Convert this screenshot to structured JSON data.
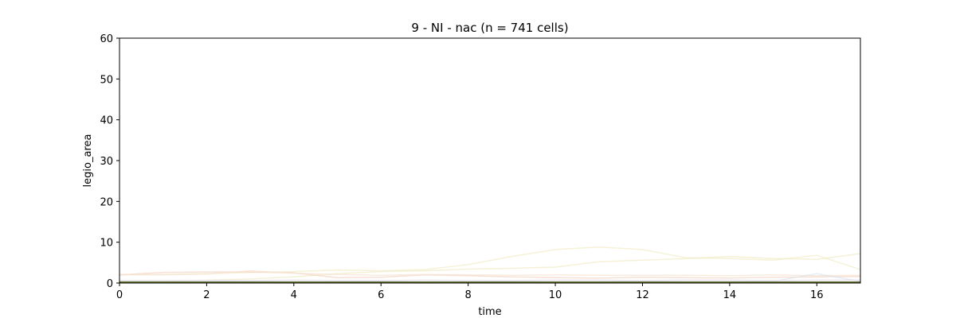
{
  "chart_data": {
    "type": "line",
    "title": "9 - NI - nac (n = 741 cells)",
    "xlabel": "time",
    "ylabel": "legio_area",
    "xlim": [
      0,
      17
    ],
    "ylim": [
      0,
      60
    ],
    "xticks": [
      0,
      2,
      4,
      6,
      8,
      10,
      12,
      14,
      16
    ],
    "yticks": [
      0,
      10,
      20,
      30,
      40,
      50,
      60
    ],
    "grid": false,
    "legend": "none",
    "series": [
      {
        "color": "#f2edc8",
        "opacity": 0.7,
        "x": [
          0,
          1,
          2,
          3,
          4,
          5,
          6,
          7,
          8,
          9,
          10,
          11,
          12,
          13,
          14,
          15,
          16,
          17
        ],
        "y": [
          2.0,
          2.1,
          2.3,
          2.6,
          2.8,
          3.2,
          3.0,
          3.3,
          4.5,
          6.5,
          8.2,
          8.8,
          8.2,
          6.2,
          6.0,
          5.6,
          6.8,
          3.3
        ]
      },
      {
        "color": "#f0ebc5",
        "opacity": 0.7,
        "x": [
          0,
          1,
          2,
          3,
          4,
          5,
          6,
          7,
          8,
          9,
          10,
          11,
          12,
          13,
          14,
          15,
          16,
          17
        ],
        "y": [
          0.5,
          0.5,
          0.7,
          1.0,
          1.5,
          2.3,
          2.8,
          3.0,
          3.4,
          3.6,
          3.9,
          5.2,
          5.6,
          6.0,
          6.5,
          6.0,
          5.8,
          7.2
        ]
      },
      {
        "color": "#f3d3c2",
        "opacity": 0.7,
        "x": [
          0,
          1,
          2,
          3,
          4,
          5,
          6,
          7,
          8,
          9,
          10,
          11,
          12,
          13,
          14,
          15,
          16,
          17
        ],
        "y": [
          2.0,
          2.6,
          2.7,
          2.7,
          2.5,
          1.3,
          1.4,
          2.0,
          1.8,
          1.5,
          1.3,
          1.2,
          1.4,
          1.3,
          1.2,
          1.4,
          1.5,
          1.6
        ]
      },
      {
        "color": "#f7e3d2",
        "opacity": 0.7,
        "x": [
          0,
          1,
          2,
          3,
          4,
          5,
          6,
          7,
          8,
          9,
          10,
          11,
          12,
          13,
          14,
          15,
          16,
          17
        ],
        "y": [
          2.1,
          2.0,
          2.2,
          3.0,
          2.4,
          2.1,
          1.9,
          2.1,
          2.0,
          1.9,
          2.0,
          1.9,
          1.9,
          1.9,
          1.8,
          2.0,
          1.8,
          1.9
        ]
      },
      {
        "color": "#d8e4f0",
        "opacity": 0.7,
        "x": [
          0,
          1,
          2,
          3,
          4,
          5,
          6,
          7,
          8,
          9,
          10,
          11,
          12,
          13,
          14,
          15,
          16,
          17
        ],
        "y": [
          0.3,
          0.3,
          0.4,
          0.4,
          0.3,
          0.3,
          0.4,
          0.3,
          0.3,
          0.4,
          0.3,
          0.3,
          0.4,
          0.3,
          0.3,
          0.4,
          2.3,
          0.4
        ]
      },
      {
        "color": "#e6dcef",
        "opacity": 0.8,
        "x": [
          0,
          1,
          2,
          3,
          4,
          5,
          6,
          7,
          8,
          9,
          10,
          11,
          12,
          13,
          14,
          15,
          16,
          17
        ],
        "y": [
          0.6,
          0.6,
          0.6,
          0.6,
          0.7,
          0.6,
          0.6,
          0.7,
          0.6,
          0.6,
          0.7,
          0.7,
          0.6,
          0.7,
          0.7,
          0.6,
          0.7,
          0.7
        ]
      },
      {
        "color": "#2f7d32",
        "opacity": 1.0,
        "x": [
          0,
          1,
          2,
          3,
          4,
          5,
          6,
          7,
          8,
          9,
          10,
          11,
          12,
          13,
          14,
          15,
          16,
          17
        ],
        "y": [
          0.25,
          0.25,
          0.25,
          0.25,
          0.25,
          0.25,
          0.25,
          0.25,
          0.25,
          0.25,
          0.25,
          0.25,
          0.25,
          0.25,
          0.25,
          0.25,
          0.25,
          0.25
        ]
      },
      {
        "color": "#8a6d2f",
        "opacity": 0.9,
        "x": [
          0,
          1,
          2,
          3,
          4,
          5,
          6,
          7,
          8,
          9,
          10,
          11,
          12,
          13,
          14,
          15,
          16,
          17
        ],
        "y": [
          0.15,
          0.15,
          0.15,
          0.15,
          0.15,
          0.15,
          0.15,
          0.15,
          0.15,
          0.15,
          0.15,
          0.15,
          0.15,
          0.15,
          0.15,
          0.15,
          0.15,
          0.15
        ]
      }
    ]
  }
}
